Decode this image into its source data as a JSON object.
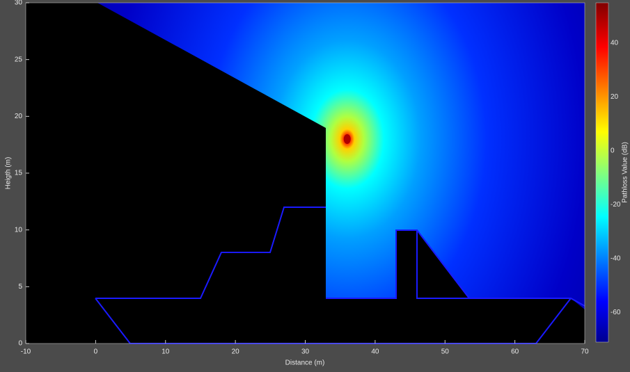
{
  "chart_data": {
    "type": "field",
    "xlabel": "Distance (m)",
    "ylabel": "Heigth (m)",
    "xlim": [
      -10,
      70
    ],
    "ylim": [
      0,
      30
    ],
    "xticks": [
      -10,
      0,
      10,
      20,
      30,
      40,
      50,
      60,
      70
    ],
    "yticks": [
      0,
      5,
      10,
      15,
      20,
      25,
      30
    ],
    "source": {
      "x": 36,
      "y": 18
    },
    "colorbar": {
      "label": "Pathloss Value (dB)",
      "lim": [
        -71,
        55
      ],
      "ticks": [
        -60,
        -40,
        -20,
        0,
        20,
        40
      ]
    }
  }
}
